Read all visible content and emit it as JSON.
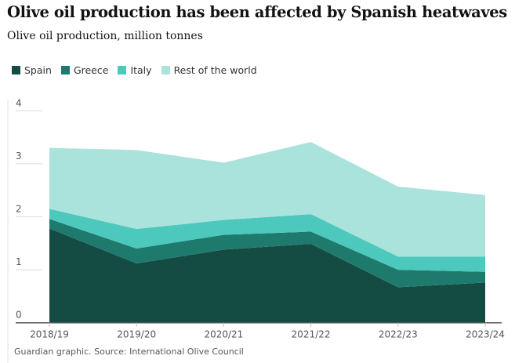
{
  "title": "Olive oil production has been affected by Spanish heatwaves",
  "subtitle": "Olive oil production, million tonnes",
  "footer": "Guardian graphic. Source: International Olive Council",
  "chart_data": {
    "type": "area",
    "stacked": true,
    "categories": [
      "2018/19",
      "2019/20",
      "2020/21",
      "2021/22",
      "2022/23",
      "2023/24"
    ],
    "series": [
      {
        "name": "Spain",
        "color": "#144c44",
        "values": [
          1.78,
          1.12,
          1.38,
          1.49,
          0.67,
          0.76
        ]
      },
      {
        "name": "Greece",
        "color": "#1f7a6e",
        "values": [
          0.18,
          0.28,
          0.28,
          0.23,
          0.33,
          0.2
        ]
      },
      {
        "name": "Italy",
        "color": "#4cc8bd",
        "values": [
          0.19,
          0.37,
          0.28,
          0.33,
          0.25,
          0.29
        ]
      },
      {
        "name": "Rest of the world",
        "color": "#aae3dc",
        "values": [
          1.15,
          1.49,
          1.08,
          1.36,
          1.32,
          1.16
        ]
      }
    ],
    "ylim": [
      0,
      4
    ],
    "yticks": [
      "0",
      "1",
      "2",
      "3",
      "4"
    ],
    "grid": true,
    "legend": "top-left"
  }
}
